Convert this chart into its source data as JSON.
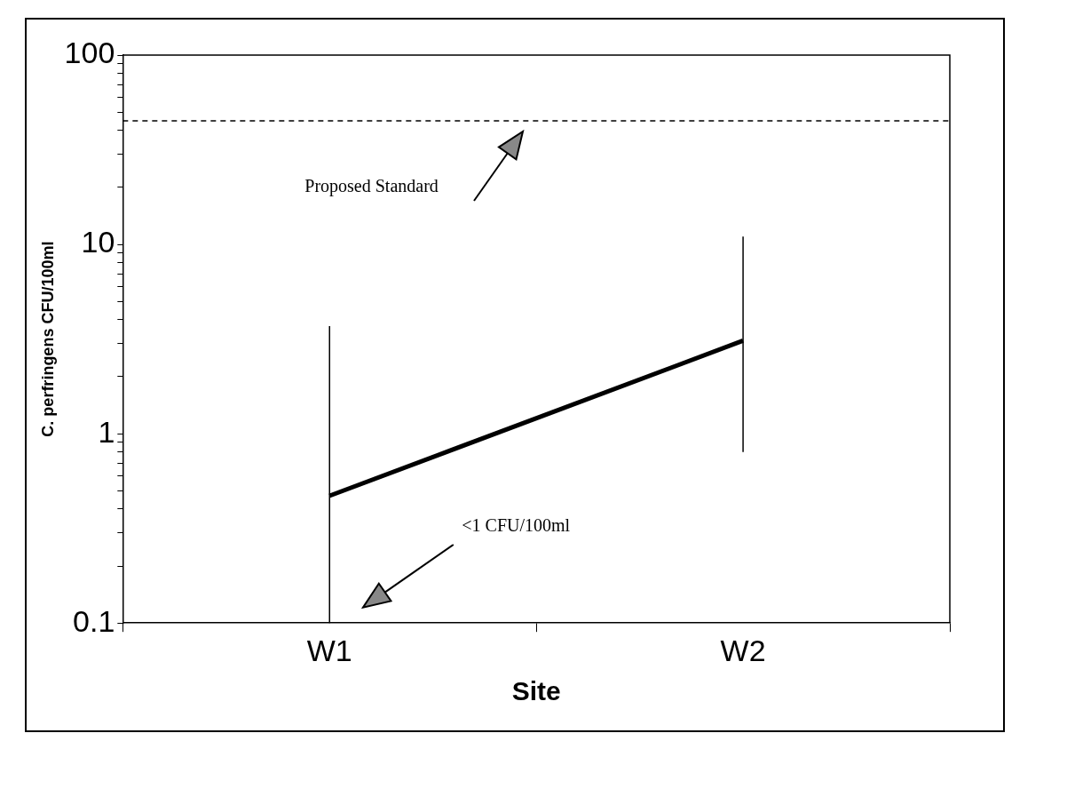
{
  "chart_data": {
    "type": "line",
    "xlabel": "Site",
    "ylabel": "C. perfringens CFU/100ml",
    "categories": [
      "W1",
      "W2"
    ],
    "series": [
      {
        "color": "#000000",
        "values": [
          0.47,
          3.1
        ],
        "errors": [
          [
            0.1,
            3.7
          ],
          [
            0.8,
            11
          ]
        ]
      }
    ],
    "log": "y",
    "ylim": [
      0.1,
      100
    ],
    "yticks": [
      0.1,
      {
        "value": 0.2,
        "label": null
      },
      {
        "value": 0.3,
        "label": null
      },
      {
        "value": 0.4,
        "label": null
      },
      {
        "value": 0.5,
        "label": null
      },
      {
        "value": 0.6,
        "label": null
      },
      {
        "value": 0.7,
        "label": null
      },
      {
        "value": 0.8,
        "label": null
      },
      {
        "value": 0.9,
        "label": null
      },
      1,
      {
        "value": 2,
        "label": null
      },
      {
        "value": 3,
        "label": null
      },
      {
        "value": 4,
        "label": null
      },
      {
        "value": 5,
        "label": null
      },
      {
        "value": 6,
        "label": null
      },
      {
        "value": 7,
        "label": null
      },
      {
        "value": 8,
        "label": null
      },
      {
        "value": 9,
        "label": null
      },
      10,
      {
        "value": 20,
        "label": null
      },
      {
        "value": 30,
        "label": null
      },
      {
        "value": 40,
        "label": null
      },
      {
        "value": 50,
        "label": null
      },
      {
        "value": 60,
        "label": null
      },
      {
        "value": 70,
        "label": null
      },
      {
        "value": 80,
        "label": null
      },
      {
        "value": 90,
        "label": null
      },
      100
    ],
    "ref_lines": [
      {
        "axis": "y",
        "value": 45,
        "label": "Proposed Standard",
        "color": "#000000",
        "line_style": "dashed"
      }
    ],
    "annotations": [
      "<1 CFU/100ml"
    ],
    "grid": false,
    "legend": false,
    "marker": "none",
    "line_style": "solid"
  }
}
